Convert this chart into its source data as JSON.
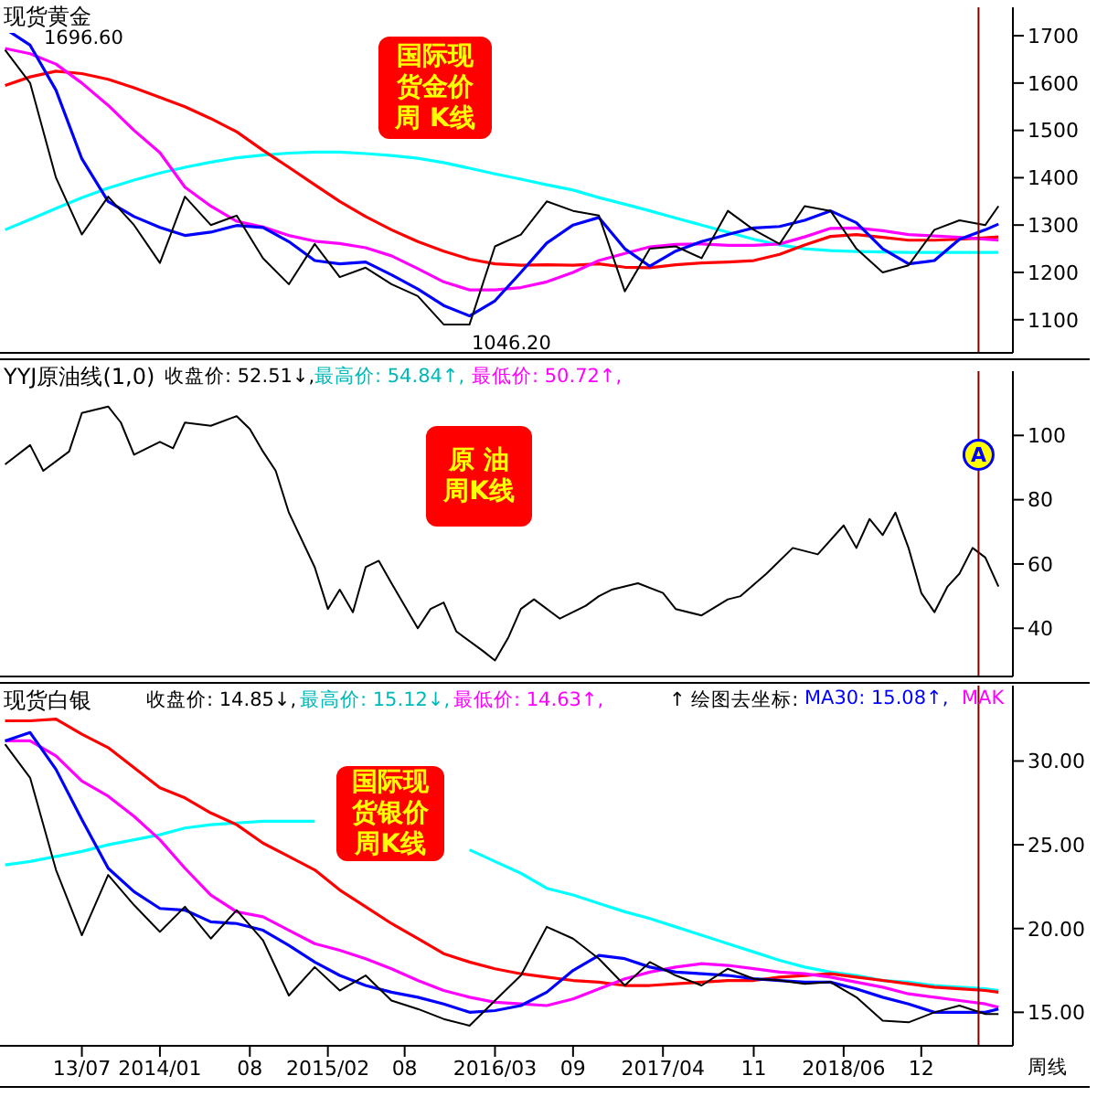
{
  "chart_data": [
    {
      "type": "line",
      "title": "现货黄金",
      "marker": "none",
      "tick_labels": "y",
      "x": [
        "2013-01",
        "2013-03",
        "2013-05",
        "2013-07",
        "2013-09",
        "2013-11",
        "2014-01",
        "2014-03",
        "2014-05",
        "2014-07",
        "2014-09",
        "2014-11",
        "2015-01",
        "2015-03",
        "2015-05",
        "2015-07",
        "2015-09",
        "2015-11",
        "2016-01",
        "2016-03",
        "2016-05",
        "2016-07",
        "2016-09",
        "2016-11",
        "2017-01",
        "2017-03",
        "2017-05",
        "2017-07",
        "2017-09",
        "2017-11",
        "2018-01",
        "2018-03",
        "2018-05",
        "2018-07",
        "2018-09",
        "2018-11",
        "2019-01",
        "2019-03",
        "2019-05",
        "2019-06"
      ],
      "xlim": [
        "2012-12-20",
        "2019-07-05"
      ],
      "ylim": [
        1030,
        1760
      ],
      "yticks": [
        1100,
        1200,
        1300,
        1400,
        1500,
        1600,
        1700
      ],
      "series": [
        {
          "color": "#00ffff",
          "values": [
            1290,
            1312,
            1335,
            1358,
            1378,
            1395,
            1410,
            1422,
            1433,
            1442,
            1448,
            1452,
            1454,
            1454,
            1451,
            1447,
            1441,
            1432,
            1420,
            1408,
            1397,
            1385,
            1374,
            1358,
            1344,
            1330,
            1315,
            1300,
            1285,
            1270,
            1258,
            1250,
            1246,
            1244,
            1243,
            1242,
            1242,
            1242,
            1242,
            1242
          ]
        },
        {
          "color": "#ff0000",
          "values": [
            1595,
            1613,
            1625,
            1620,
            1608,
            1590,
            1570,
            1550,
            1525,
            1497,
            1458,
            1422,
            1385,
            1350,
            1318,
            1290,
            1265,
            1245,
            1228,
            1218,
            1215,
            1216,
            1215,
            1218,
            1211,
            1210,
            1216,
            1220,
            1222,
            1225,
            1238,
            1258,
            1276,
            1280,
            1274,
            1268,
            1268,
            1270,
            1273,
            1275
          ]
        },
        {
          "color": "#ff00ff",
          "values": [
            1673,
            1662,
            1640,
            1600,
            1553,
            1500,
            1453,
            1380,
            1340,
            1308,
            1296,
            1278,
            1266,
            1261,
            1252,
            1235,
            1208,
            1180,
            1163,
            1163,
            1168,
            1180,
            1200,
            1225,
            1240,
            1254,
            1259,
            1260,
            1257,
            1257,
            1260,
            1275,
            1293,
            1294,
            1288,
            1280,
            1277,
            1274,
            1270,
            1268
          ]
        },
        {
          "color": "#0000ff",
          "values": [
            1715,
            1680,
            1585,
            1440,
            1350,
            1318,
            1295,
            1278,
            1285,
            1299,
            1295,
            1265,
            1225,
            1218,
            1222,
            1195,
            1165,
            1130,
            1108,
            1140,
            1200,
            1262,
            1300,
            1316,
            1250,
            1213,
            1245,
            1265,
            1280,
            1294,
            1297,
            1310,
            1330,
            1305,
            1250,
            1218,
            1225,
            1270,
            1290,
            1302
          ]
        },
        {
          "color": "#000000",
          "values": [
            1670,
            1600,
            1400,
            1280,
            1360,
            1300,
            1220,
            1360,
            1300,
            1320,
            1230,
            1175,
            1260,
            1190,
            1210,
            1175,
            1150,
            1090,
            1090,
            1255,
            1280,
            1350,
            1330,
            1320,
            1160,
            1250,
            1255,
            1230,
            1330,
            1290,
            1260,
            1340,
            1330,
            1250,
            1200,
            1215,
            1290,
            1310,
            1300,
            1340
          ]
        }
      ],
      "ref_lines": [
        {
          "axis": "x",
          "value": "2019-04-15",
          "color": "#800000"
        }
      ],
      "annotations": [
        "1696.60",
        "1046.20",
        "国际现货金价周 K线"
      ]
    },
    {
      "type": "line",
      "title": "YYJ原油线(1,0)",
      "marker": "none",
      "tick_labels": "y",
      "xlim": [
        "2012-12-20",
        "2019-07-05"
      ],
      "ylim": [
        25,
        120
      ],
      "yticks": [
        40,
        60,
        80,
        100
      ],
      "series": [
        {
          "color": "#000000",
          "x": [
            "2013-01",
            "2013-03",
            "2013-04",
            "2013-06",
            "2013-07",
            "2013-09",
            "2013-10",
            "2013-11",
            "2014-01",
            "2014-02",
            "2014-03",
            "2014-05",
            "2014-07",
            "2014-08",
            "2014-09",
            "2014-10",
            "2014-11",
            "2015-01",
            "2015-02",
            "2015-03",
            "2015-04",
            "2015-05",
            "2015-06",
            "2015-07",
            "2015-09",
            "2015-10",
            "2015-11",
            "2015-12",
            "2016-02",
            "2016-03",
            "2016-04",
            "2016-05",
            "2016-06",
            "2016-08",
            "2016-10",
            "2016-11",
            "2016-12",
            "2017-02",
            "2017-04",
            "2017-05",
            "2017-07",
            "2017-09",
            "2017-10",
            "2017-12",
            "2018-02",
            "2018-04",
            "2018-06",
            "2018-07",
            "2018-08",
            "2018-09",
            "2018-10",
            "2018-11",
            "2018-12",
            "2019-01",
            "2019-02",
            "2019-03",
            "2019-04",
            "2019-05",
            "2019-06"
          ],
          "values": [
            91,
            97,
            89,
            95,
            107,
            109,
            104,
            94,
            98,
            96,
            104,
            103,
            106,
            102,
            95,
            89,
            76,
            59,
            46,
            52,
            45,
            59,
            61,
            54,
            40,
            46,
            48,
            39,
            33,
            30,
            37,
            46,
            49,
            43,
            47,
            50,
            52,
            54,
            51,
            46,
            44,
            49,
            50,
            57,
            65,
            63,
            72,
            65,
            74,
            69,
            76,
            65,
            51,
            45,
            53,
            57,
            65,
            62,
            53
          ]
        }
      ],
      "ref_lines": [
        {
          "axis": "x",
          "value": "2019-04-15",
          "color": "#800000"
        }
      ],
      "annotations": [
        "收盘价: 52.51↓,",
        "最高价: 54.84↑,",
        "最低价: 50.72↑,",
        "原 油周K线",
        {
          "text": "A",
          "x": "2019-04-15",
          "y": 94
        }
      ]
    },
    {
      "type": "line",
      "title": "现货白银",
      "marker": "none",
      "x": [
        "2013-01",
        "2013-03",
        "2013-05",
        "2013-07",
        "2013-09",
        "2013-11",
        "2014-01",
        "2014-03",
        "2014-05",
        "2014-07",
        "2014-09",
        "2014-11",
        "2015-01",
        "2015-03",
        "2015-05",
        "2015-07",
        "2015-09",
        "2015-11",
        "2016-01",
        "2016-03",
        "2016-05",
        "2016-07",
        "2016-09",
        "2016-11",
        "2017-01",
        "2017-03",
        "2017-05",
        "2017-07",
        "2017-09",
        "2017-11",
        "2018-01",
        "2018-03",
        "2018-05",
        "2018-07",
        "2018-09",
        "2018-11",
        "2019-01",
        "2019-03",
        "2019-05",
        "2019-06"
      ],
      "xlim": [
        "2012-12-20",
        "2019-07-05"
      ],
      "xticks": [
        {
          "value": "2013-07-01",
          "label": "13/07"
        },
        {
          "value": "2014-01-01",
          "label": "2014/01"
        },
        {
          "value": "2014-08-01",
          "label": "08"
        },
        {
          "value": "2015-02-01",
          "label": "2015/02"
        },
        {
          "value": "2015-08-01",
          "label": "08"
        },
        {
          "value": "2016-03-01",
          "label": "2016/03"
        },
        {
          "value": "2016-09-01",
          "label": "09"
        },
        {
          "value": "2017-04-01",
          "label": "2017/04"
        },
        {
          "value": "2017-11-01",
          "label": "11"
        },
        {
          "value": "2018-06-01",
          "label": "2018/06"
        },
        {
          "value": "2018-12-01",
          "label": "12"
        }
      ],
      "ylim": [
        13,
        34.5
      ],
      "yticks": [
        {
          "value": 15,
          "label": "15.00"
        },
        {
          "value": 20,
          "label": "20.00"
        },
        {
          "value": 25,
          "label": "25.00"
        },
        {
          "value": 30,
          "label": "30.00"
        }
      ],
      "series": [
        {
          "color": "#00ffff",
          "values": [
            23.8,
            24,
            24.3,
            24.6,
            25,
            25.3,
            25.6,
            26,
            26.2,
            26.3,
            26.4,
            26.4,
            26.4,
            null,
            null,
            null,
            null,
            null,
            24.7,
            24,
            23.3,
            22.4,
            22,
            21.5,
            21,
            20.6,
            20.1,
            19.6,
            19.1,
            18.6,
            18.1,
            17.7,
            17.4,
            17.2,
            16.9,
            16.8,
            16.6,
            16.5,
            16.4,
            16.3
          ]
        },
        {
          "color": "#ff0000",
          "values": [
            32.4,
            32.4,
            32.5,
            31.6,
            30.8,
            29.6,
            28.4,
            27.8,
            26.9,
            26.2,
            25.1,
            24.3,
            23.5,
            22.3,
            21.3,
            20.3,
            19.4,
            18.5,
            18,
            17.6,
            17.3,
            17.1,
            16.9,
            16.8,
            16.6,
            16.6,
            16.7,
            16.8,
            16.9,
            16.9,
            17.1,
            17.2,
            17.3,
            17.1,
            16.9,
            16.7,
            16.5,
            16.4,
            16.3,
            16.2
          ]
        },
        {
          "color": "#ff00ff",
          "values": [
            31.2,
            31.2,
            30.3,
            28.8,
            27.9,
            26.7,
            25.3,
            23.6,
            22,
            21,
            20.7,
            19.9,
            19.1,
            18.7,
            18.2,
            17.6,
            16.9,
            16.3,
            15.9,
            15.6,
            15.5,
            15.4,
            15.8,
            16.4,
            17,
            17.4,
            17.7,
            17.9,
            17.8,
            17.6,
            17.4,
            17.3,
            17.1,
            16.8,
            16.5,
            16.1,
            15.9,
            15.7,
            15.5,
            15.3
          ]
        },
        {
          "color": "#0000ff",
          "values": [
            31.2,
            31.7,
            29.5,
            26.5,
            23.6,
            22.2,
            21.2,
            21.1,
            20.4,
            20.3,
            19.9,
            19,
            18,
            17.2,
            16.6,
            16.2,
            15.9,
            15.5,
            15,
            15.1,
            15.4,
            16.2,
            17.5,
            18.4,
            18.2,
            17.7,
            17.4,
            17.3,
            17.2,
            17,
            16.9,
            16.8,
            16.8,
            16.4,
            15.9,
            15.5,
            15,
            15,
            15,
            15.2
          ]
        },
        {
          "color": "#000000",
          "values": [
            31,
            29,
            23.5,
            19.6,
            23.2,
            21.4,
            19.8,
            21.3,
            19.4,
            21.1,
            19.3,
            16,
            17.7,
            16.3,
            17.2,
            15.7,
            15.2,
            14.6,
            14.2,
            15.7,
            17.2,
            20.1,
            19.4,
            18.2,
            16.6,
            18,
            17.2,
            16.6,
            17.6,
            17,
            16.9,
            16.7,
            16.8,
            15.9,
            14.5,
            14.4,
            15,
            15.4,
            14.9,
            14.9
          ]
        }
      ],
      "ref_lines": [
        {
          "axis": "x",
          "value": "2019-04-15",
          "color": "#800000"
        }
      ],
      "annotations": [
        "收盘价: 14.85↓,",
        "最高价: 15.12↓,",
        "最低价: 14.63↑,",
        "↑ 绘图去坐标:",
        "MA30: 15.08↑,",
        "MAK",
        "国际现货银价周K线",
        "周线"
      ]
    }
  ]
}
